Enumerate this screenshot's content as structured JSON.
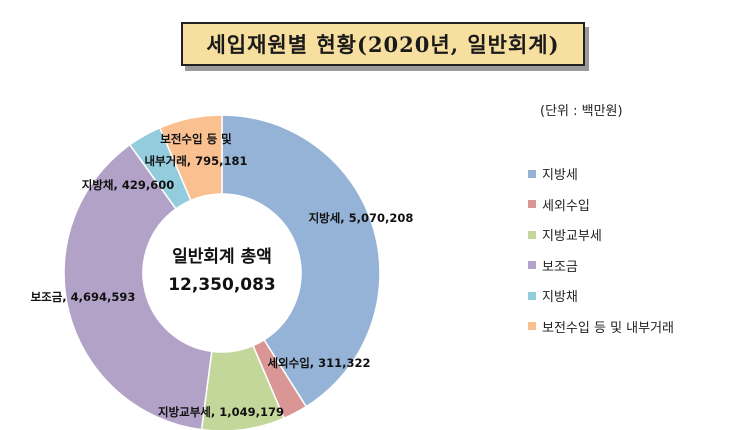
{
  "title": "세입재원별 현황(2020년, 일반회계)",
  "unit": "(단위 : 백만원)",
  "center": {
    "title": "일반회계 총액",
    "value": "12,350,083"
  },
  "chart_data": {
    "type": "pie",
    "categories": [
      "지방세",
      "세외수입",
      "지방교부세",
      "보조금",
      "지방채",
      "보전수입 등 및 내부거래"
    ],
    "values": [
      5070208,
      311322,
      1049179,
      4694593,
      429600,
      795181
    ],
    "total": 12350083,
    "colors": [
      "#95b3d7",
      "#d99694",
      "#c4d79b",
      "#b3a2c7",
      "#93cddd",
      "#fac090"
    ],
    "data_labels": [
      "지방세, 5,070,208",
      "세외수입, 311,322",
      "지방교부세, 1,049,179",
      "보조금, 4,694,593",
      "지방채, 429,600",
      "보전수입 등 및|내부거래, 795,181"
    ],
    "legend_position": "right"
  }
}
